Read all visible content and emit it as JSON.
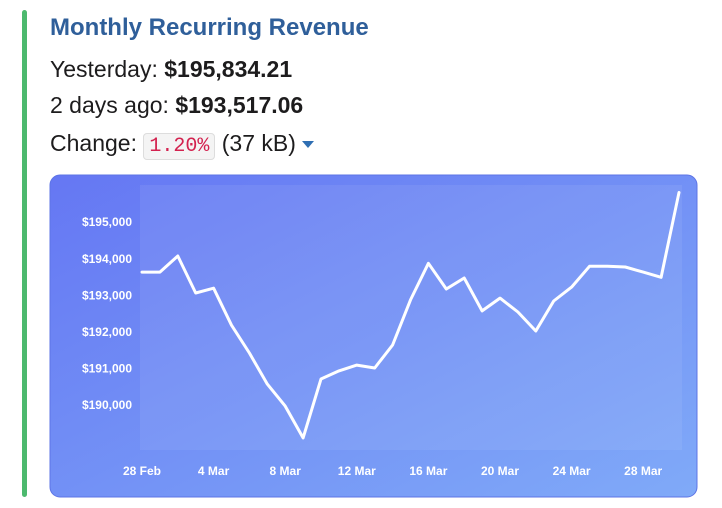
{
  "header": {
    "title": "Monthly Recurring Revenue",
    "yesterday_label": "Yesterday:",
    "yesterday_value": "$195,834.21",
    "two_days_label": "2 days ago:",
    "two_days_value": "$193,517.06",
    "change_label": "Change:",
    "change_value": "1.20%",
    "size": "(37 kB)"
  },
  "chart_data": {
    "type": "line",
    "color": "#ffffff",
    "categories": [
      "28 Feb",
      null,
      null,
      null,
      "4 Mar",
      null,
      null,
      null,
      "8 Mar",
      null,
      null,
      null,
      "12 Mar",
      null,
      null,
      null,
      "16 Mar",
      null,
      null,
      null,
      "20 Mar",
      null,
      null,
      null,
      "24 Mar",
      null,
      null,
      null,
      "28 Mar",
      null,
      null
    ],
    "values": [
      193660,
      193660,
      194100,
      193090,
      193220,
      192210,
      191450,
      190600,
      190000,
      189130,
      190740,
      190960,
      191120,
      191040,
      191670,
      192900,
      193900,
      193200,
      193500,
      192600,
      192950,
      192570,
      192050,
      192870,
      193250,
      193820,
      193820,
      193800,
      193660,
      193517,
      195834
    ],
    "ylim": [
      188800,
      196040
    ],
    "yticks": [
      {
        "value": 190000,
        "label": "$190,000"
      },
      {
        "value": 191000,
        "label": "$191,000"
      },
      {
        "value": 192000,
        "label": "$192,000"
      },
      {
        "value": 193000,
        "label": "$193,000"
      },
      {
        "value": 194000,
        "label": "$194,000"
      },
      {
        "value": 195000,
        "label": "$195,000"
      }
    ]
  }
}
